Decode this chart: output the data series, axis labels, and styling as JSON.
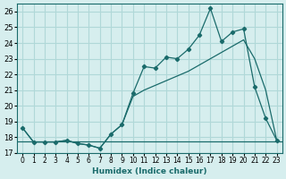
{
  "xlabel": "Humidex (Indice chaleur)",
  "ylabel": "",
  "background_color": "#d6eeee",
  "grid_color": "#b0d8d8",
  "line_color": "#1a6b6b",
  "x_values": [
    0,
    1,
    2,
    3,
    4,
    5,
    6,
    7,
    8,
    9,
    10,
    11,
    12,
    13,
    14,
    15,
    16,
    17,
    18,
    19,
    20,
    21,
    22,
    23
  ],
  "line1": [
    18.6,
    17.7,
    17.7,
    17.7,
    17.8,
    17.6,
    17.5,
    17.3,
    18.2,
    18.8,
    20.8,
    22.5,
    22.4,
    23.1,
    23.0,
    23.6,
    24.5,
    26.2,
    24.1,
    24.7,
    24.9,
    21.2,
    19.2,
    17.8
  ],
  "line2": [
    18.6,
    17.7,
    17.7,
    17.7,
    17.8,
    17.6,
    17.5,
    17.3,
    18.2,
    18.8,
    20.6,
    21.0,
    21.3,
    21.6,
    21.9,
    22.2,
    22.6,
    23.0,
    23.4,
    23.8,
    24.2,
    23.0,
    21.0,
    17.8
  ],
  "line3_y": 17.75,
  "ylim": [
    17.0,
    26.5
  ],
  "xlim": [
    -0.5,
    23.5
  ],
  "yticks": [
    17,
    18,
    19,
    20,
    21,
    22,
    23,
    24,
    25,
    26
  ],
  "xtick_labels": [
    "0",
    "1",
    "2",
    "3",
    "4",
    "5",
    "6",
    "7",
    "8",
    "9",
    "10",
    "11",
    "12",
    "13",
    "14",
    "15",
    "16",
    "17",
    "18",
    "19",
    "20",
    "21",
    "22",
    "23"
  ]
}
